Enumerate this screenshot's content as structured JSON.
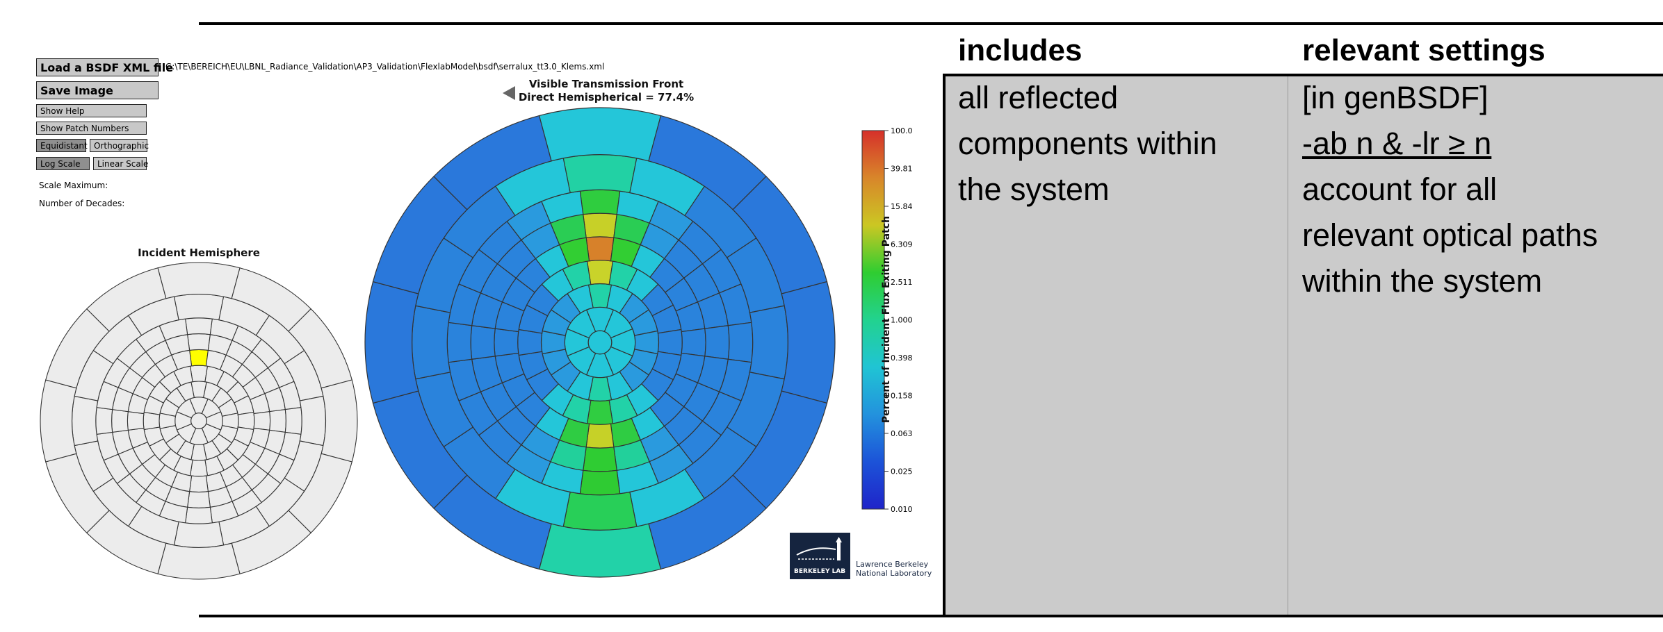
{
  "toolbar": {
    "load_label": "Load a BSDF XML file",
    "file_path": "G:\\TE\\BEREICH\\EU\\LBNL_Radiance_Validation\\AP3_Validation\\FlexlabModel\\bsdf\\serralux_tt3.0_Klems.xml",
    "save_label": "Save Image",
    "show_help": "Show Help",
    "show_patch_numbers": "Show Patch Numbers",
    "equidistant": "Equidistant",
    "orthographic": "Orthographic",
    "log_scale": "Log Scale",
    "linear_scale": "Linear Scale",
    "scale_maximum": "Scale Maximum:",
    "number_of_decades": "Number of Decades:"
  },
  "incident": {
    "title": "Incident Hemisphere",
    "selected_patch_color": "#ffff00"
  },
  "exiting": {
    "title_line1": "Visible Transmission Front",
    "title_line2": "Direct Hemispherical = 77.4%",
    "arrow_icon": "left-triangle-icon"
  },
  "colorbar": {
    "label": "Percent of Incident Flux Exiting Patch",
    "ticks": [
      "100.0",
      "39.81",
      "15.84",
      "6.309",
      "2.511",
      "1.000",
      "0.398",
      "0.158",
      "0.063",
      "0.025",
      "0.010"
    ],
    "scale": "log",
    "colors": [
      "#d6302a",
      "#d8862a",
      "#cbc723",
      "#2fcd31",
      "#22d28f",
      "#20c4d4",
      "#2392dd",
      "#1c53d8",
      "#1f24c9"
    ]
  },
  "logo": {
    "label": "BERKELEY LAB",
    "name_line1": "Lawrence Berkeley",
    "name_line2": "National Laboratory"
  },
  "table": {
    "col1_header": "includes",
    "col2_header": "relevant settings",
    "col1_lines": [
      "all reflected",
      "components within",
      "the system"
    ],
    "col2_line1": "[in genBSDF]",
    "col2_line2": "-ab n & -lr ≥ n",
    "col2_lines_rest": [
      "account for all",
      "relevant optical paths",
      "within the system"
    ]
  }
}
